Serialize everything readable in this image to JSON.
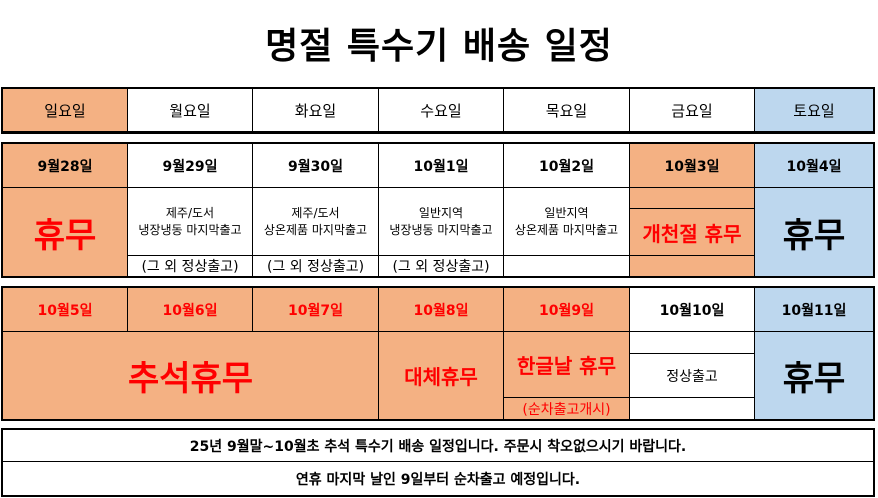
{
  "title": "명절 특수기 배송 일정",
  "weekdays": [
    "일요일",
    "월요일",
    "화요일",
    "수요일",
    "목요일",
    "금요일",
    "토요일"
  ],
  "week1": {
    "dates": [
      "9월28일",
      "9월29일",
      "9월30일",
      "10월1일",
      "10월2일",
      "10월3일",
      "10월4일"
    ],
    "sun_text": "휴무",
    "mon": {
      "line1": "제주/도서",
      "line2": "냉장냉동 마지막출고",
      "note": "(그 외 정상출고)"
    },
    "tue": {
      "line1": "제주/도서",
      "line2": "상온제품 마지막출고",
      "note": "(그 외 정상출고)"
    },
    "wed": {
      "line1": "일반지역",
      "line2": "냉장냉동 마지막출고",
      "note": "(그 외 정상출고)"
    },
    "thu": {
      "line1": "일반지역",
      "line2": "상온제품 마지막출고"
    },
    "fri_text": "개천절 휴무",
    "sat_text": "휴무"
  },
  "week2": {
    "dates": [
      "10월5일",
      "10월6일",
      "10월7일",
      "10월8일",
      "10월9일",
      "10월10일",
      "10월11일"
    ],
    "sun_tue_text": "추석휴무",
    "wed_text": "대체휴무",
    "thu_text": "한글날 휴무",
    "thu_note": "(순차출고개시)",
    "fri_text": "정상출고",
    "sat_text": "휴무"
  },
  "footer": {
    "line1": "25년 9월말~10월초 추석 특수기 배송 일정입니다. 주문시 착오없으시기 바랍니다.",
    "line2": "연휴 마지막 날인 9일부터 순차출고 예정입니다."
  },
  "colors": {
    "holiday": "#f4b183",
    "saturday": "#bdd7ee",
    "holiday_text": "#ff0000"
  }
}
